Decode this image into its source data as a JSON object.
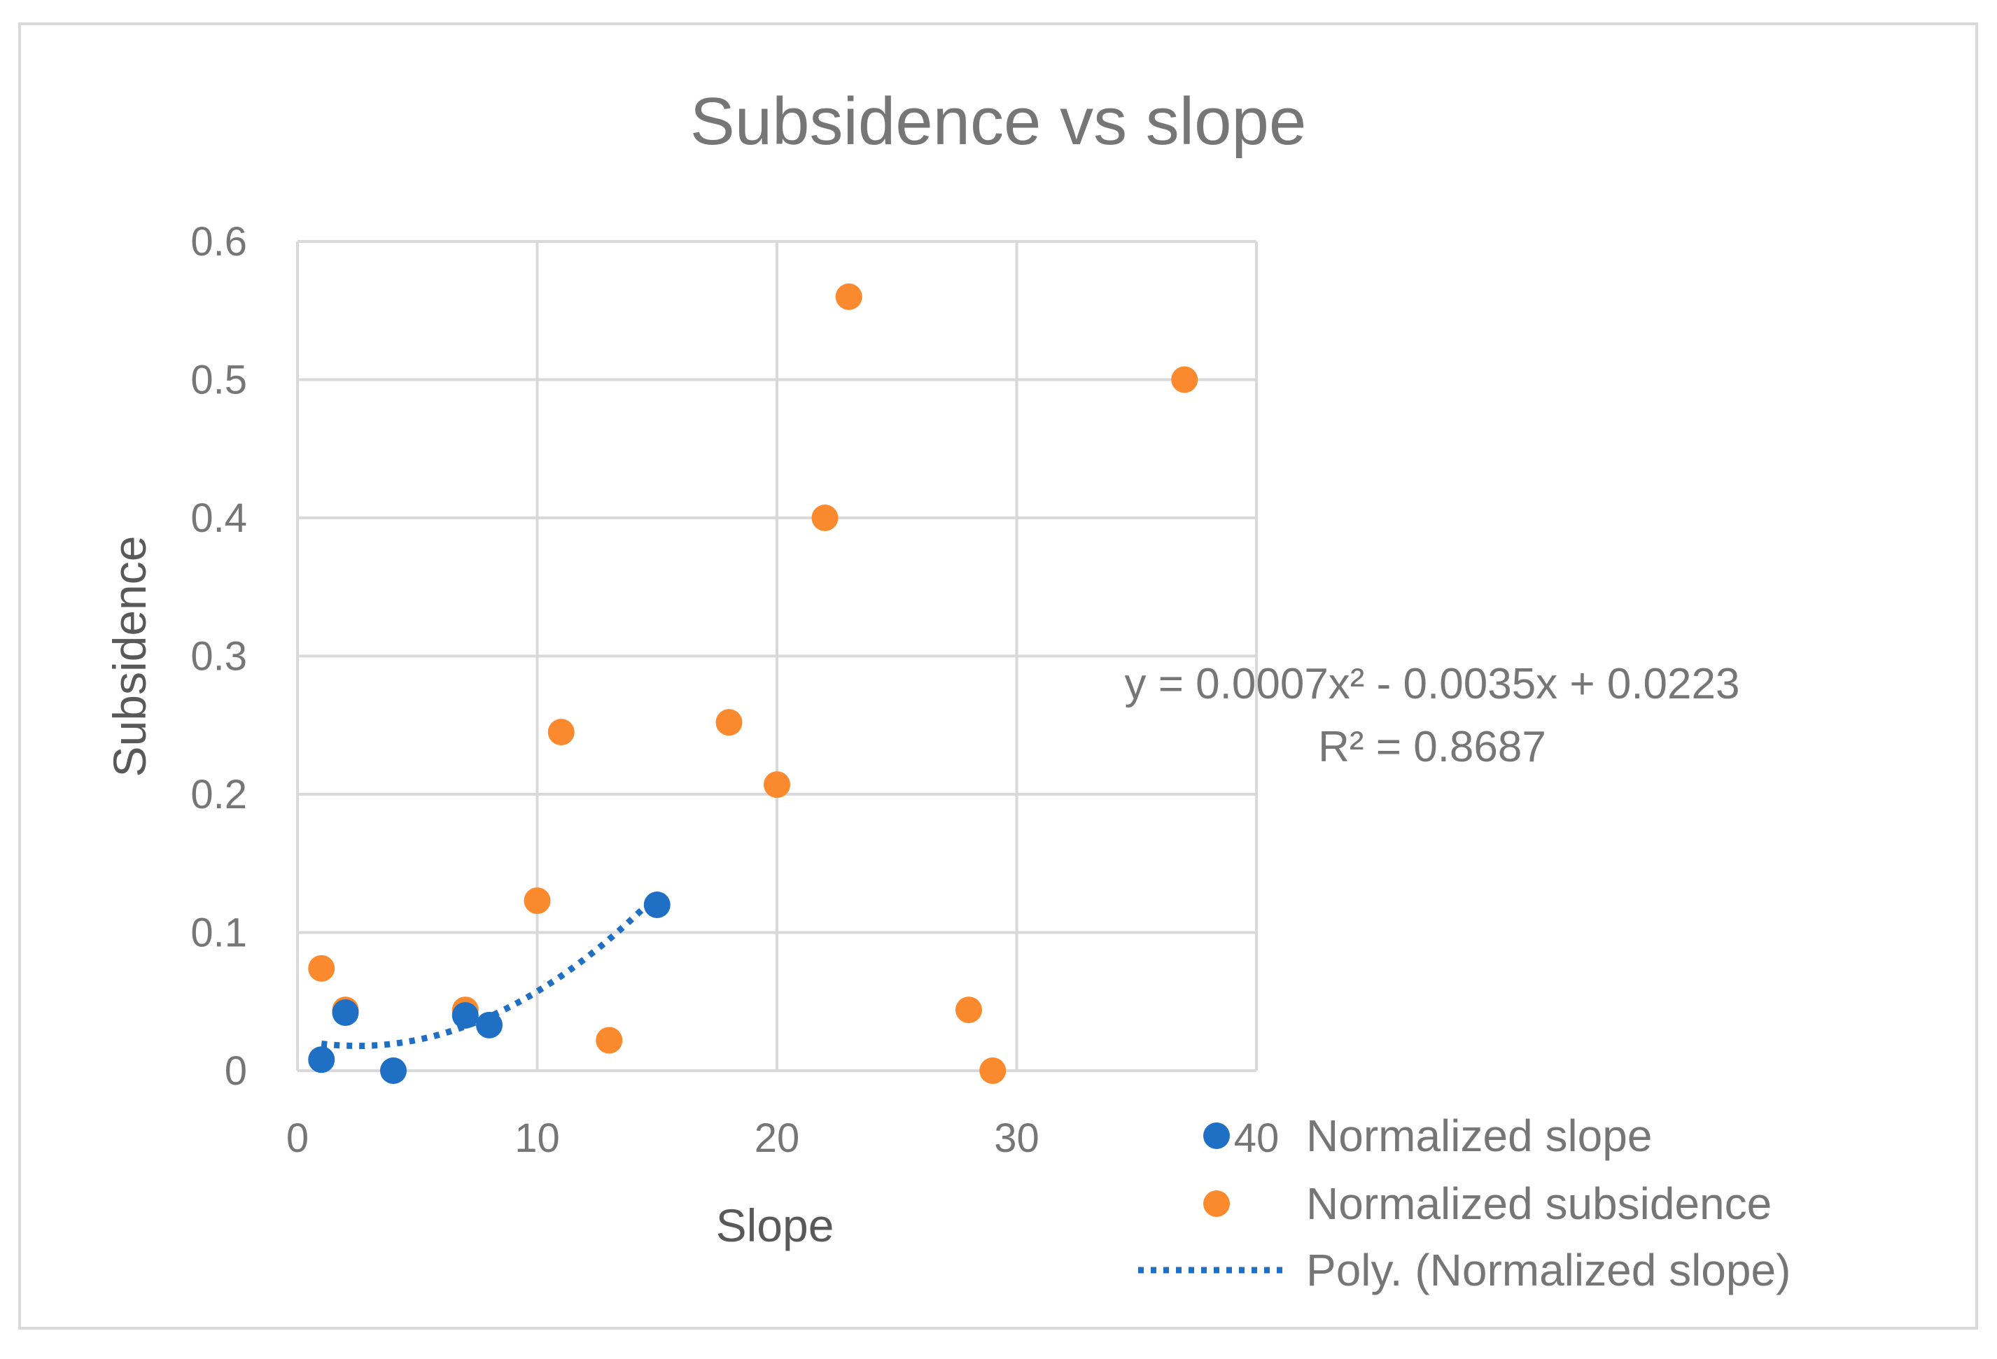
{
  "chart_data": {
    "type": "scatter",
    "title": "Subsidence vs slope",
    "xlabel": "Slope",
    "ylabel": "Subsidence",
    "xlim": [
      0,
      40
    ],
    "ylim": [
      0,
      0.6
    ],
    "xticks": [
      0,
      10,
      20,
      30,
      40
    ],
    "yticks": [
      0,
      0.1,
      0.2,
      0.3,
      0.4,
      0.5,
      0.6
    ],
    "xtick_labels": [
      "0",
      "10",
      "20",
      "30",
      "40"
    ],
    "ytick_labels": [
      "0",
      "0.1",
      "0.2",
      "0.3",
      "0.4",
      "0.5",
      "0.6"
    ],
    "grid": true,
    "legend_position": "bottom-right",
    "series": [
      {
        "name": "Normalized slope",
        "color": "#1f6fc5",
        "points": [
          [
            1,
            0.008
          ],
          [
            2,
            0.042
          ],
          [
            4,
            0.0
          ],
          [
            7,
            0.04
          ],
          [
            8,
            0.033
          ],
          [
            15,
            0.12
          ]
        ]
      },
      {
        "name": "Normalized subsidence",
        "color": "#fb8a2e",
        "points": [
          [
            1,
            0.074
          ],
          [
            2,
            0.044
          ],
          [
            7,
            0.044
          ],
          [
            10,
            0.123
          ],
          [
            11,
            0.245
          ],
          [
            13,
            0.022
          ],
          [
            18,
            0.252
          ],
          [
            20,
            0.207
          ],
          [
            22,
            0.4
          ],
          [
            23,
            0.56
          ],
          [
            28,
            0.044
          ],
          [
            29,
            0.0
          ],
          [
            37,
            0.5
          ]
        ]
      }
    ],
    "trendline": {
      "name": "Poly. (Normalized slope)",
      "type": "polynomial",
      "order": 2,
      "coefficients": [
        0.0007,
        -0.0035,
        0.0223
      ],
      "x_range": [
        1,
        15
      ],
      "color": "#1f6fc5",
      "equation": "y = 0.0007x² - 0.0035x + 0.0223",
      "r_squared": "R² = 0.8687"
    }
  }
}
